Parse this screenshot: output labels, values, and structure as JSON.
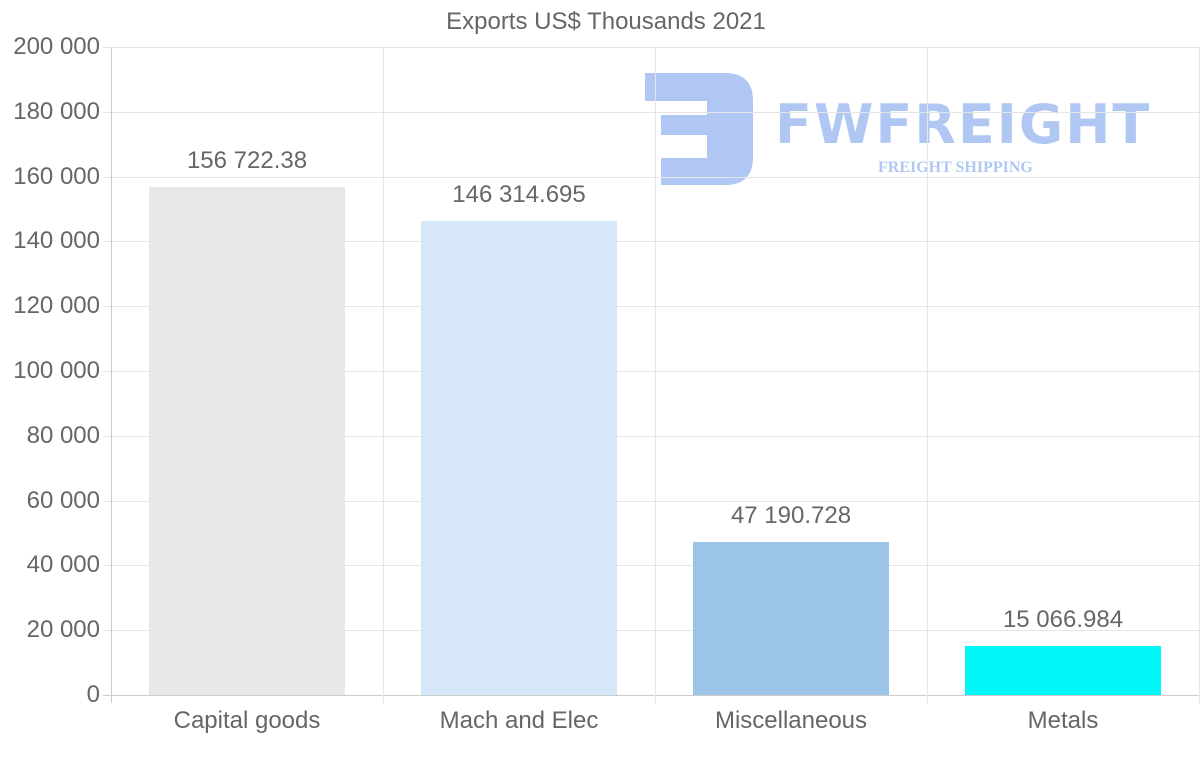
{
  "chart_data": {
    "type": "bar",
    "title": "Exports US$ Thousands 2021",
    "xlabel": "",
    "ylabel": "",
    "categories": [
      "Capital goods",
      "Mach and Elec",
      "Miscellaneous",
      "Metals"
    ],
    "values": [
      156722.38,
      146314.695,
      47190.728,
      15066.984
    ],
    "value_labels": [
      "156 722.38",
      "146 314.695",
      "47 190.728",
      "15 066.984"
    ],
    "colors": [
      "#e8e8e8",
      "#d6e7f9",
      "#9bc4e6",
      "#00f8f8"
    ],
    "ylim": [
      0,
      200000
    ],
    "yticks": [
      0,
      20000,
      40000,
      60000,
      80000,
      100000,
      120000,
      140000,
      160000,
      180000,
      200000
    ],
    "ytick_labels": [
      "0",
      "20 000",
      "40 000",
      "60 000",
      "80 000",
      "100 000",
      "120 000",
      "140 000",
      "160 000",
      "180 000",
      "200 000"
    ],
    "grid": true,
    "legend": null
  },
  "watermark": {
    "brand": "FWFREIGHT",
    "tagline": "FREIGHT SHIPPING",
    "color": "#6f9be8"
  }
}
